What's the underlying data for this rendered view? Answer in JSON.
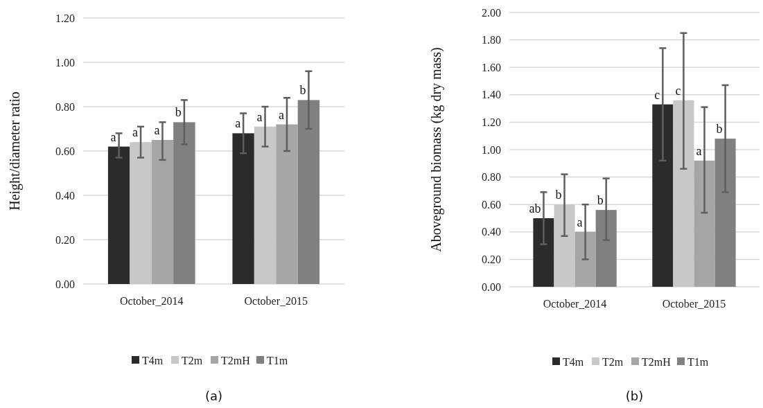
{
  "chart_data": [
    {
      "type": "bar",
      "ylabel": "Height/diameter ratio",
      "categories": [
        "October_2014",
        "October_2015"
      ],
      "series": [
        {
          "name": "T4m",
          "color": "#2b2b2b",
          "values": [
            0.62,
            0.68
          ],
          "errors": [
            [
              0.57,
              0.68
            ],
            [
              0.59,
              0.77
            ]
          ],
          "value_labels": [
            "a",
            "a"
          ]
        },
        {
          "name": "T2m",
          "color": "#c8c8c8",
          "values": [
            0.64,
            0.71
          ],
          "errors": [
            [
              0.57,
              0.71
            ],
            [
              0.62,
              0.8
            ]
          ],
          "value_labels": [
            "a",
            "a"
          ]
        },
        {
          "name": "T2mH",
          "color": "#a6a6a6",
          "values": [
            0.65,
            0.72
          ],
          "errors": [
            [
              0.56,
              0.73
            ],
            [
              0.6,
              0.84
            ]
          ],
          "value_labels": [
            "a",
            "a"
          ]
        },
        {
          "name": "T1m",
          "color": "#808080",
          "values": [
            0.73,
            0.83
          ],
          "errors": [
            [
              0.63,
              0.83
            ],
            [
              0.7,
              0.96
            ]
          ],
          "value_labels": [
            "b",
            "b"
          ]
        }
      ],
      "ylim": [
        0,
        1.2
      ],
      "yticks": [
        {
          "value": 0,
          "label": "0.00"
        },
        {
          "value": 0.2,
          "label": "0.20"
        },
        {
          "value": 0.4,
          "label": "0.40"
        },
        {
          "value": 0.6,
          "label": "0.60"
        },
        {
          "value": 0.8,
          "label": "0.80"
        },
        {
          "value": 1,
          "label": "1.00"
        },
        {
          "value": 1.2,
          "label": "1.20"
        }
      ],
      "grid": "y",
      "legend": "bottom",
      "annotations": [
        "(a)"
      ]
    },
    {
      "type": "bar",
      "ylabel": "Aboveground biomass (kg dry mass)",
      "categories": [
        "October_2014",
        "October_2015"
      ],
      "series": [
        {
          "name": "T4m",
          "color": "#2b2b2b",
          "values": [
            0.5,
            1.33
          ],
          "errors": [
            [
              0.31,
              0.69
            ],
            [
              0.92,
              1.74
            ]
          ],
          "value_labels": [
            "ab",
            "c"
          ]
        },
        {
          "name": "T2m",
          "color": "#c8c8c8",
          "values": [
            0.6,
            1.36
          ],
          "errors": [
            [
              0.37,
              0.82
            ],
            [
              0.86,
              1.85
            ]
          ],
          "value_labels": [
            "b",
            "c"
          ]
        },
        {
          "name": "T2mH",
          "color": "#a6a6a6",
          "values": [
            0.4,
            0.92
          ],
          "errors": [
            [
              0.2,
              0.6
            ],
            [
              0.54,
              1.31
            ]
          ],
          "value_labels": [
            "a",
            "a"
          ]
        },
        {
          "name": "T1m",
          "color": "#808080",
          "values": [
            0.56,
            1.08
          ],
          "errors": [
            [
              0.34,
              0.79
            ],
            [
              0.69,
              1.47
            ]
          ],
          "value_labels": [
            "b",
            "b"
          ]
        }
      ],
      "ylim": [
        0,
        2
      ],
      "yticks": [
        {
          "value": 0,
          "label": "0.00"
        },
        {
          "value": 0.2,
          "label": "0.20"
        },
        {
          "value": 0.4,
          "label": "0.40"
        },
        {
          "value": 0.6,
          "label": "0.60"
        },
        {
          "value": 0.8,
          "label": "0.80"
        },
        {
          "value": 1,
          "label": "1.00"
        },
        {
          "value": 1.2,
          "label": "1.20"
        },
        {
          "value": 1.4,
          "label": "1.40"
        },
        {
          "value": 1.6,
          "label": "1.60"
        },
        {
          "value": 1.8,
          "label": "1.80"
        },
        {
          "value": 2,
          "label": "2.00"
        }
      ],
      "grid": "y",
      "legend": "bottom",
      "annotations": [
        "(b)"
      ]
    }
  ]
}
